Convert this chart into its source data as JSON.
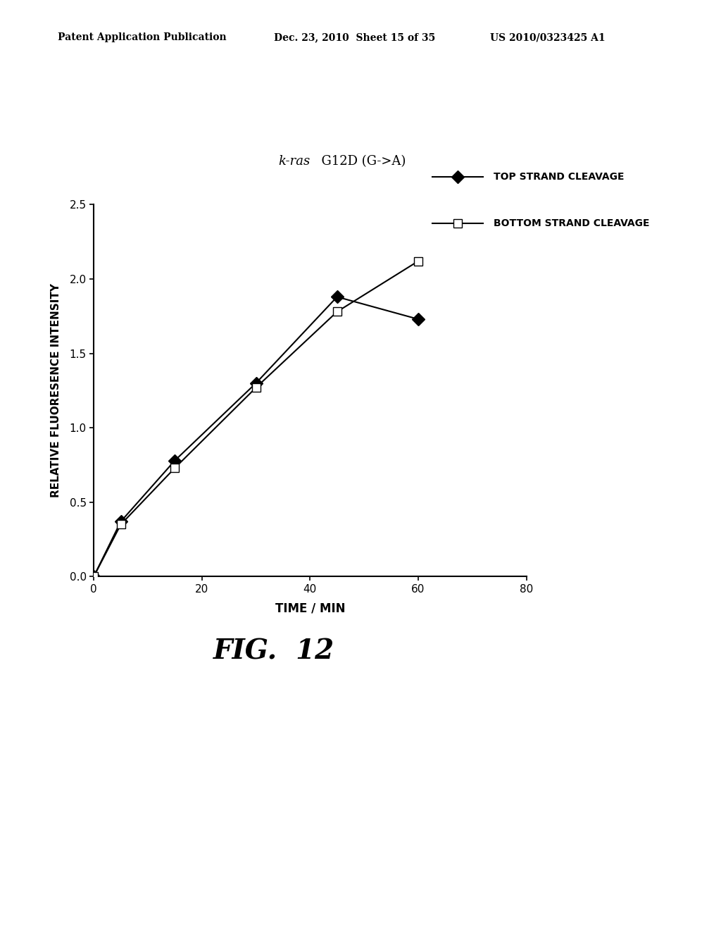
{
  "header_left": "Patent Application Publication",
  "header_mid": "Dec. 23, 2010  Sheet 15 of 35",
  "header_right": "US 2010/0323425 A1",
  "chart_title": "k-ras  G12D (G->A)",
  "xlabel": "TIME / MIN",
  "ylabel": "RELATIVE FLUORESENCE INTENSITY",
  "fig_label": "FIG.  12",
  "xlim": [
    0,
    80
  ],
  "ylim": [
    0,
    2.5
  ],
  "xticks": [
    0,
    20,
    40,
    60,
    80
  ],
  "yticks": [
    0,
    0.5,
    1,
    1.5,
    2,
    2.5
  ],
  "top_strand_x": [
    0,
    5,
    15,
    30,
    45,
    60
  ],
  "top_strand_y": [
    0.0,
    0.37,
    0.78,
    1.3,
    1.88,
    1.73
  ],
  "bottom_strand_x": [
    0,
    5,
    15,
    30,
    45,
    60
  ],
  "bottom_strand_y": [
    0.0,
    0.35,
    0.73,
    1.27,
    1.78,
    2.12
  ],
  "legend_top_label": "TOP STRAND CLEAVAGE",
  "legend_bottom_label": "BOTTOM STRAND CLEAVAGE",
  "background_color": "#ffffff",
  "line_color": "#000000"
}
